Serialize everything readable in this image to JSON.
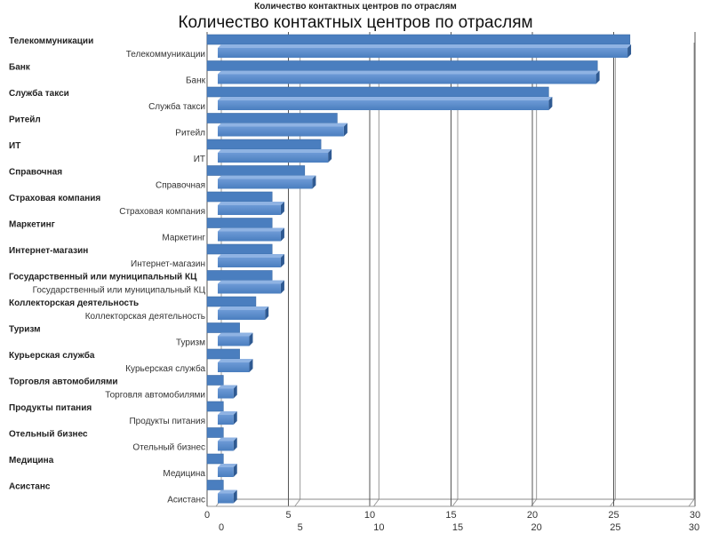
{
  "chart_data": {
    "type": "bar",
    "orientation": "horizontal",
    "title": "Количество контактных центров по отраслям",
    "title_secondary": "Количество контактных центров по отраслям",
    "categories": [
      "Телекоммуникации",
      "Банк",
      "Служба такси",
      "Ритейл",
      "ИТ",
      "Справочная",
      "Страховая компания",
      "Маркетинг",
      "Интернет-магазин",
      "Государственный или муниципальный КЦ",
      "Коллекторская деятельность",
      "Туризм",
      "Курьерская служба",
      "Торговля автомобилями",
      "Продукты питания",
      "Отельный бизнес",
      "Медицина",
      "Асистанс"
    ],
    "values": [
      26,
      24,
      21,
      8,
      7,
      6,
      4,
      4,
      4,
      4,
      3,
      2,
      2,
      1,
      1,
      1,
      1,
      1
    ],
    "xlim": [
      0,
      30
    ],
    "xticks": [
      "0",
      "5",
      "10",
      "15",
      "20",
      "25",
      "30"
    ],
    "xlabel": "",
    "ylabel": "",
    "grid": true,
    "legend": "none",
    "bar_color": "#4a7ebf"
  }
}
